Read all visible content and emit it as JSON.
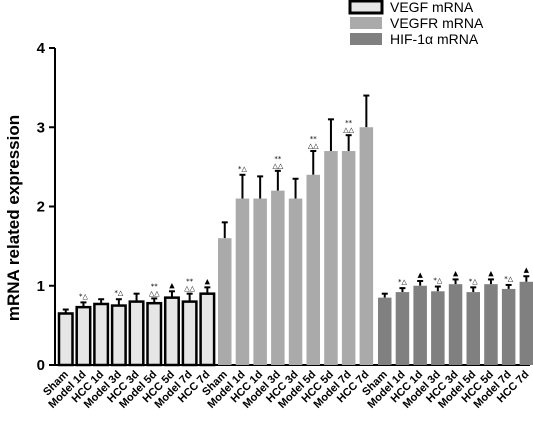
{
  "chart_data": {
    "type": "bar",
    "ylabel": "mRNA related expression",
    "xlabel": "",
    "ylim": [
      0,
      4
    ],
    "yticks": [
      0,
      1,
      2,
      3,
      4
    ],
    "grid": false,
    "legend_position": "top-right",
    "series": [
      {
        "name": "VEGF mRNA",
        "color": "#e6e6e6",
        "edge": "#000000",
        "categories": [
          "Sham",
          "Model 1d",
          "HCC 1d",
          "Model 3d",
          "HCC 3d",
          "Model 5d",
          "HCC 5d",
          "Model 7d",
          "HCC 7d"
        ],
        "values": [
          0.65,
          0.73,
          0.77,
          0.75,
          0.8,
          0.78,
          0.85,
          0.8,
          0.9
        ],
        "errors": [
          0.05,
          0.06,
          0.06,
          0.08,
          0.1,
          0.06,
          0.08,
          0.1,
          0.08
        ],
        "annotations": [
          "",
          "*△",
          "",
          "*△",
          "",
          "**△△",
          "▲",
          "**△△",
          "▲"
        ]
      },
      {
        "name": "VEGFR mRNA",
        "color": "#aaaaaa",
        "categories": [
          "Sham",
          "Model 1d",
          "HCC 1d",
          "Model 3d",
          "HCC 3d",
          "Model 5d",
          "HCC 5d",
          "Model 7d",
          "HCC 7d"
        ],
        "values": [
          1.6,
          2.1,
          2.1,
          2.2,
          2.1,
          2.4,
          2.7,
          2.7,
          3.0
        ],
        "errors": [
          0.2,
          0.3,
          0.28,
          0.25,
          0.25,
          0.3,
          0.4,
          0.2,
          0.4
        ],
        "annotations": [
          "",
          "*△",
          "",
          "**△△",
          "",
          "**△△",
          "",
          "**△△",
          ""
        ]
      },
      {
        "name": "HIF-1α mRNA",
        "color": "#808080",
        "categories": [
          "Sham",
          "Model 1d",
          "HCC 1d",
          "Model 3d",
          "HCC 3d",
          "Model 5d",
          "HCC 5d",
          "Model 7d",
          "HCC 7d"
        ],
        "values": [
          0.85,
          0.92,
          1.0,
          0.93,
          1.02,
          0.92,
          1.02,
          0.96,
          1.05
        ],
        "errors": [
          0.05,
          0.05,
          0.06,
          0.06,
          0.06,
          0.06,
          0.06,
          0.05,
          0.07
        ],
        "annotations": [
          "",
          "*△",
          "▲",
          "*△",
          "▲",
          "*△",
          "▲",
          "*△",
          "▲"
        ]
      }
    ]
  }
}
